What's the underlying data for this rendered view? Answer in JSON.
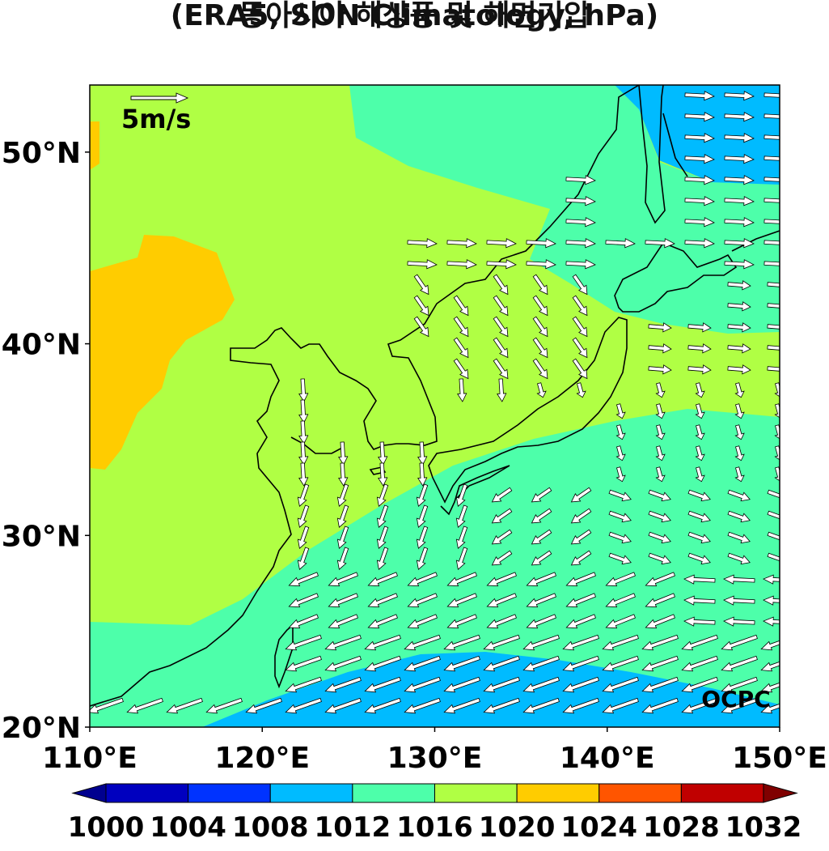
{
  "title": {
    "line1": "동아시아 해상풍 및 해면기압",
    "line2": "(ERA5, SON Climatology, hPa)"
  },
  "reference_vector": {
    "label": "5m/s"
  },
  "credit": "OCPC",
  "axes": {
    "lon_ticks": [
      "110°E",
      "120°E",
      "130°E",
      "140°E",
      "150°E"
    ],
    "lat_ticks": [
      "50°N",
      "40°N",
      "30°N",
      "20°N"
    ],
    "lon_range": [
      110,
      150
    ],
    "lat_range": [
      20,
      53.5
    ]
  },
  "colorbar": {
    "levels": [
      "1000",
      "1004",
      "1008",
      "1012",
      "1016",
      "1020",
      "1024",
      "1028",
      "1032"
    ],
    "colors": [
      "#0000bf",
      "#0033ff",
      "#00bbff",
      "#4dffaa",
      "#b0ff44",
      "#ffcc00",
      "#ff5500",
      "#c00000"
    ],
    "under_color": "#00008f",
    "over_color": "#800000"
  },
  "fill_colors": {
    "c1008": "#00bbff",
    "c1012": "#4dffaa",
    "c1016": "#b0ff44",
    "c1020": "#ffcc00"
  }
}
